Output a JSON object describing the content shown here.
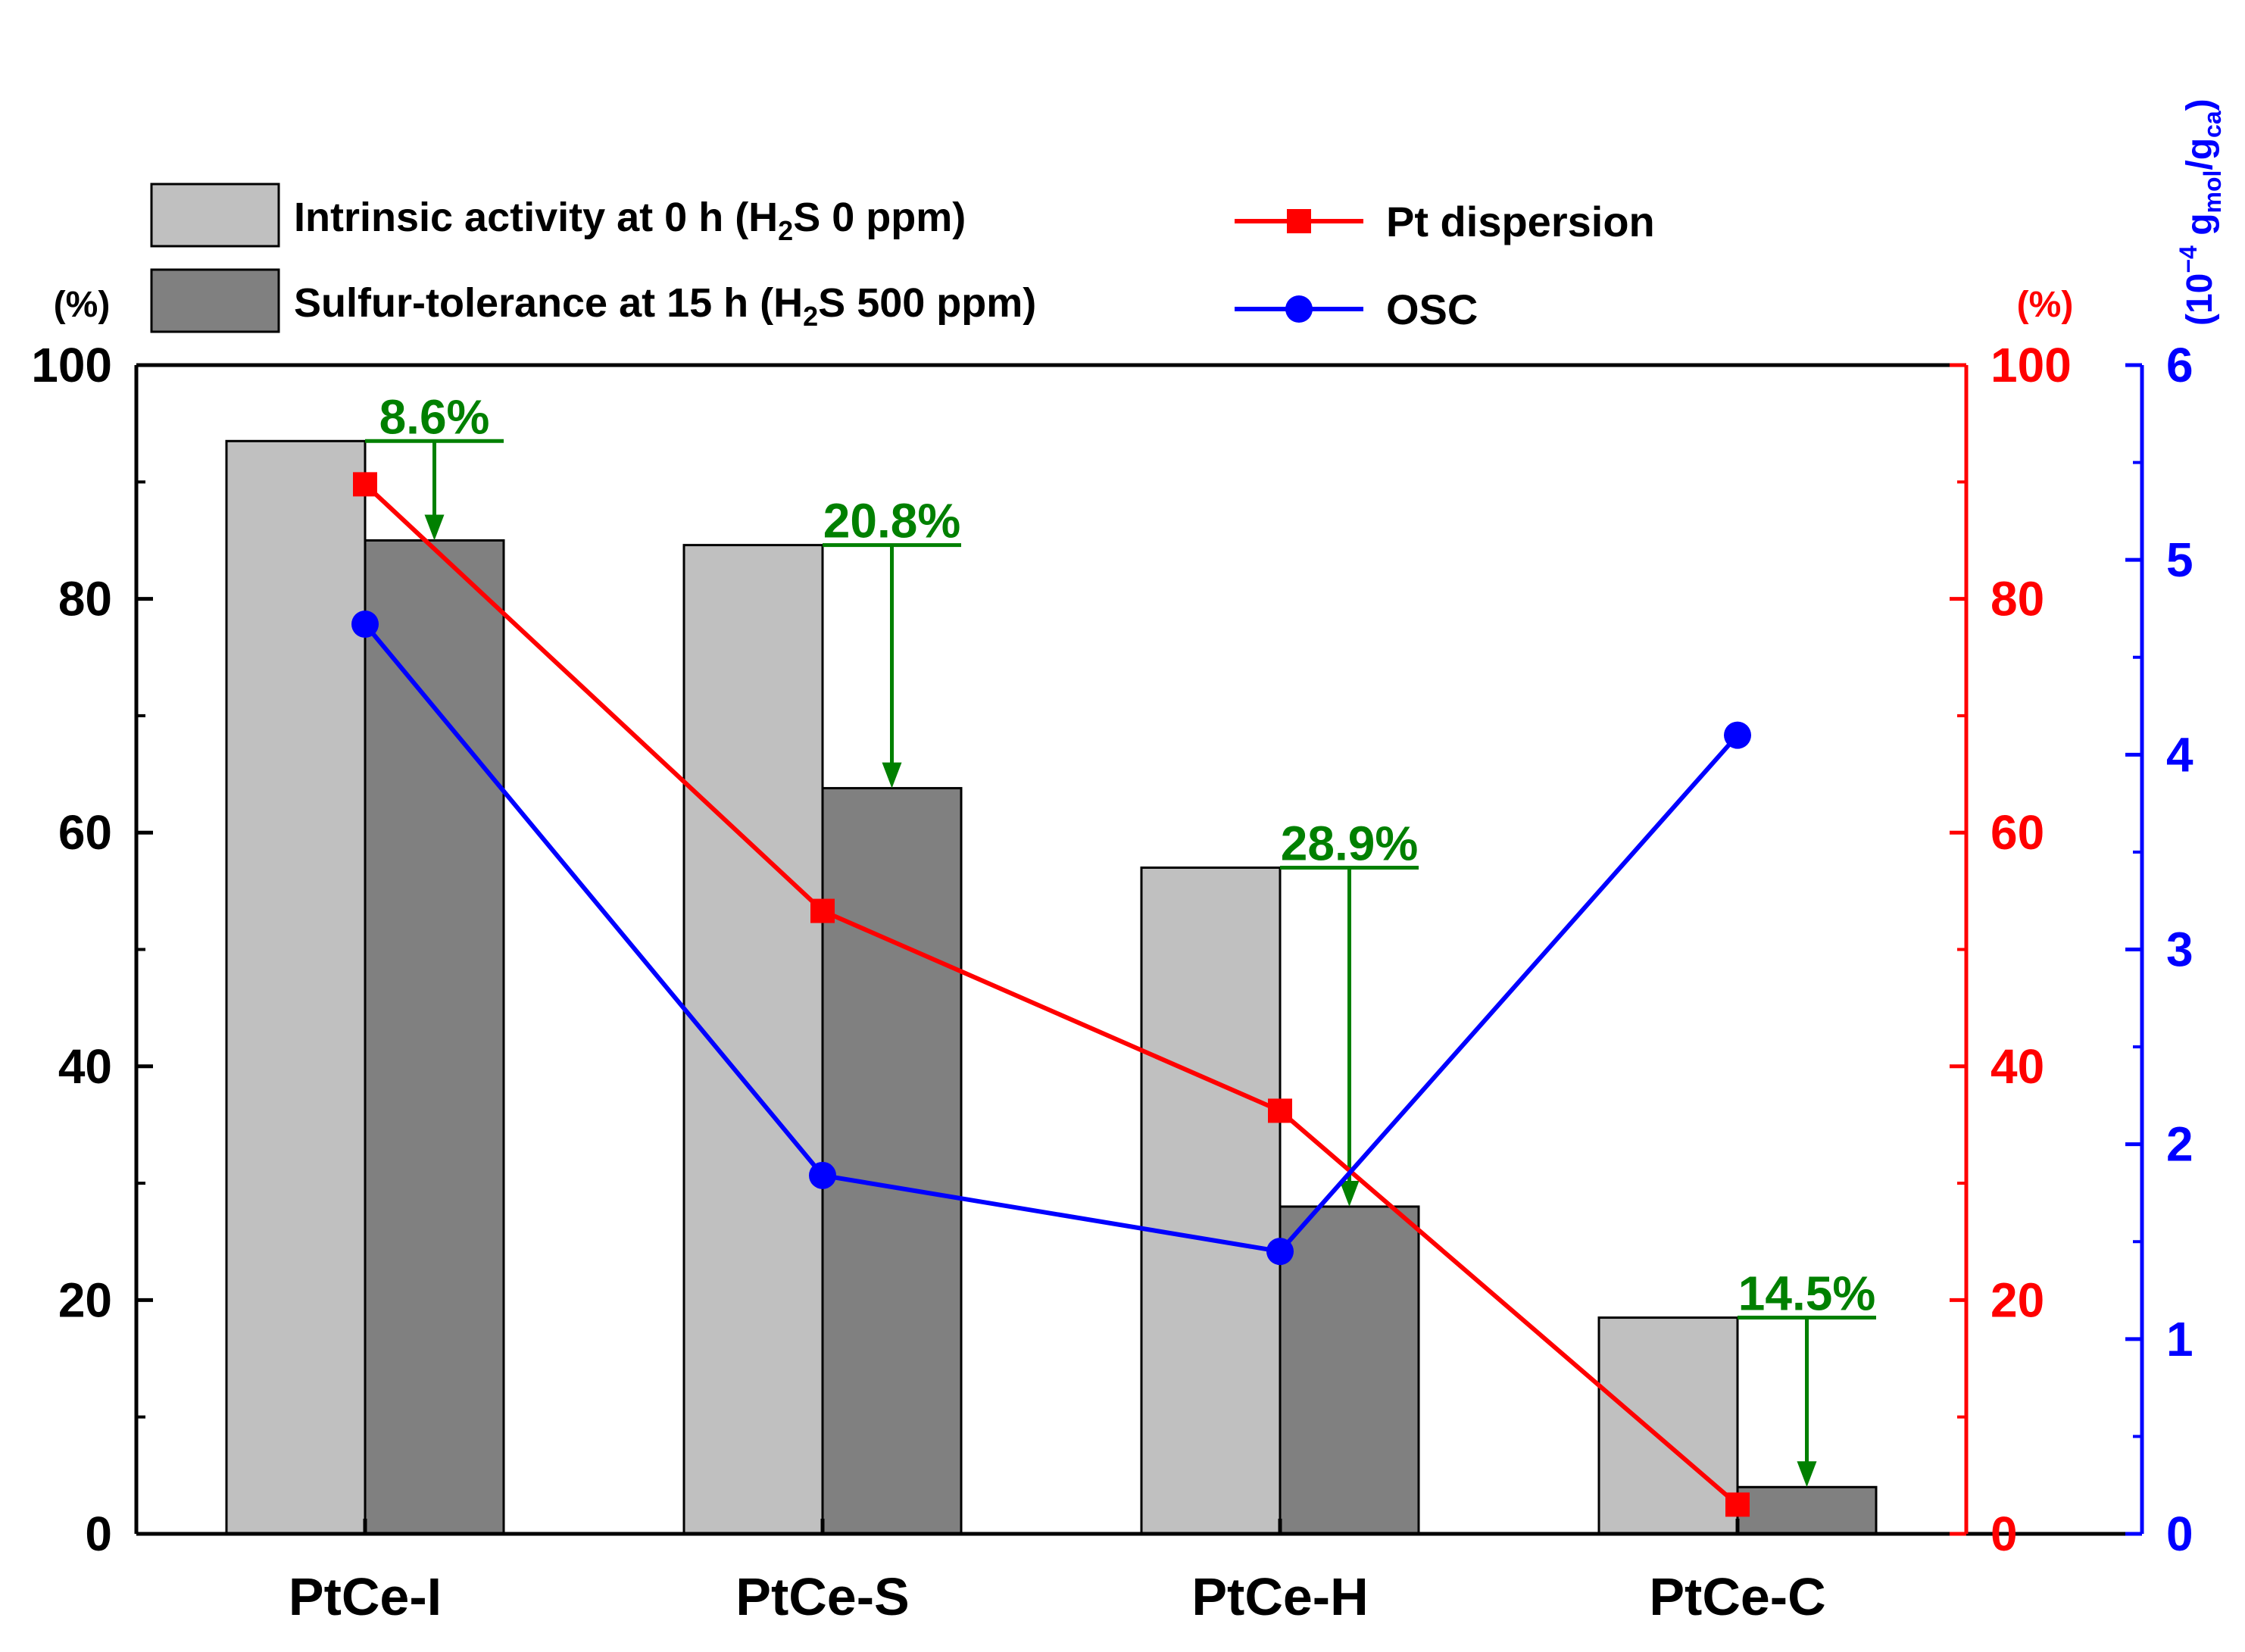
{
  "chart_data": {
    "type": "bar",
    "categories": [
      "PtCe-I",
      "PtCe-S",
      "PtCe-H",
      "PtCe-C"
    ],
    "axes": {
      "left": {
        "unit_label": "(%)",
        "range": [
          0,
          100
        ],
        "ticks": [
          0,
          20,
          40,
          60,
          80,
          100
        ],
        "color": "#000000"
      },
      "right1": {
        "unit_label": "(%)",
        "range": [
          0,
          100
        ],
        "ticks": [
          0,
          20,
          40,
          60,
          80,
          100
        ],
        "color": "#ff0000"
      },
      "right2": {
        "range": [
          0,
          6
        ],
        "ticks": [
          0,
          1,
          2,
          3,
          4,
          5,
          6
        ],
        "color": "#0000ff",
        "label": {
          "base": "(10",
          "exp": "−4",
          "mid": " g",
          "sub1": "mol",
          "slash": "/g",
          "sub2": "ca",
          "close": ")"
        }
      }
    },
    "bar_series": [
      {
        "name": "Intrinsic activity at 0 h (H2S 0 ppm)",
        "color": "#c0c0c0",
        "legend": {
          "pre": "Intrinsic activity at 0 h (H",
          "sub": "2",
          "post": "S 0 ppm)"
        },
        "values": [
          93.5,
          84.6,
          57.0,
          18.5
        ]
      },
      {
        "name": "Sulfur-tolerance at 15 h (H2S 500 ppm)",
        "color": "#808080",
        "legend": {
          "pre": "Sulfur-tolerance at 15 h (H",
          "sub": "2",
          "post": "S 500 ppm)"
        },
        "values": [
          85.0,
          63.8,
          28.0,
          4.0
        ]
      }
    ],
    "line_series": [
      {
        "name": "Pt dispersion",
        "color": "#ff0000",
        "marker": "square",
        "axis": "right1",
        "values": [
          89.8,
          53.3,
          36.2,
          2.5
        ]
      },
      {
        "name": "OSC",
        "color": "#0000ff",
        "marker": "circle",
        "axis": "right2",
        "values": [
          4.67,
          1.84,
          1.45,
          4.1
        ]
      }
    ],
    "annotations": {
      "color": "#008000",
      "items": [
        {
          "category": "PtCe-I",
          "text": "8.6%"
        },
        {
          "category": "PtCe-S",
          "text": "20.8%"
        },
        {
          "category": "PtCe-H",
          "text": "28.9%"
        },
        {
          "category": "PtCe-C",
          "text": "14.5%"
        }
      ]
    }
  }
}
